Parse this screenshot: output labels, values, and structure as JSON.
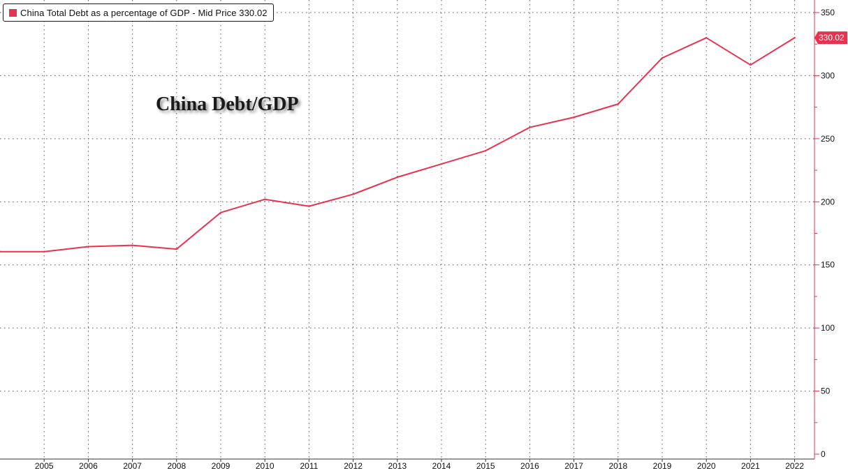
{
  "colors": {
    "series": "#e8324e",
    "grid": "#555555",
    "axis_line": "#e8324e",
    "background": "#ffffff"
  },
  "legend": {
    "text": "China Total Debt as a percentage of GDP - Mid Price 330.02",
    "icon": "square-swatch-icon"
  },
  "annotation": {
    "text": "China Debt/GDP"
  },
  "last_value_label": "330.02",
  "chart_data": {
    "type": "line",
    "title": "",
    "xlabel": "",
    "ylabel": "",
    "x": [
      "2004",
      "2005",
      "2006",
      "2007",
      "2008",
      "2009",
      "2010",
      "2011",
      "2012",
      "2013",
      "2014",
      "2015",
      "2016",
      "2017",
      "2018",
      "2019",
      "2020",
      "2021",
      "2022"
    ],
    "x_tick_labels": [
      "2005",
      "2006",
      "2007",
      "2008",
      "2009",
      "2010",
      "2011",
      "2012",
      "2013",
      "2014",
      "2015",
      "2016",
      "2017",
      "2018",
      "2019",
      "2020",
      "2021",
      "2022"
    ],
    "series": [
      {
        "name": "China Total Debt as a percentage of GDP - Mid Price",
        "values": [
          160.5,
          160.5,
          164.5,
          165.5,
          162.5,
          191.5,
          202,
          196.5,
          206,
          219.5,
          230,
          240.5,
          259,
          267,
          277.5,
          314,
          330,
          308.5,
          330.02
        ]
      }
    ],
    "y_ticks": [
      0,
      50,
      100,
      150,
      200,
      250,
      300,
      350
    ],
    "ylim": [
      0,
      355
    ],
    "grid": true,
    "y_axis_side": "right",
    "legend_position": "top-left"
  }
}
